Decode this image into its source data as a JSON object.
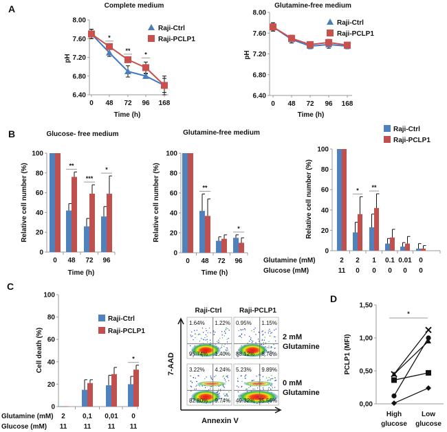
{
  "panels": {
    "a": "A",
    "b": "B",
    "c": "C",
    "d": "D"
  },
  "colors": {
    "ctrl": "#4f81bd",
    "pclp1": "#c0504d",
    "ctrl_line": "#3d78c8",
    "pclp1_line": "#c8504a"
  },
  "chart_data": [
    {
      "type": "line",
      "title": "Complete medium",
      "xlabel": "Time (h)",
      "ylabel": "pH",
      "categories": [
        "0",
        "48",
        "72",
        "96",
        "168"
      ],
      "yticks": [
        "6.40",
        "6.80",
        "7.20",
        "7.60",
        "8.00"
      ],
      "ylim": [
        6.4,
        8.0
      ],
      "legend": "top-right",
      "series": [
        {
          "name": "Raji-Ctrl",
          "marker": "triangle",
          "values": [
            7.7,
            7.3,
            6.9,
            6.8,
            6.6
          ],
          "errors": [
            0.1,
            0.08,
            0.12,
            0.05,
            0.15
          ]
        },
        {
          "name": "Raji-PCLP1",
          "marker": "square",
          "values": [
            7.7,
            7.43,
            7.15,
            6.98,
            6.6
          ],
          "errors": [
            0.1,
            0.03,
            0.03,
            0.12,
            0.2
          ]
        }
      ],
      "significance": [
        {
          "index": 1,
          "label": "*"
        },
        {
          "index": 2,
          "label": "**"
        },
        {
          "index": 3,
          "label": "*"
        }
      ]
    },
    {
      "type": "line",
      "title": "Glutamine-free medium",
      "xlabel": "Time (h)",
      "ylabel": "pH",
      "categories": [
        "0",
        "48",
        "72",
        "96",
        "168"
      ],
      "yticks": [
        "6.40",
        "6.80",
        "7.20",
        "7.60",
        "8.00"
      ],
      "ylim": [
        6.4,
        8.0
      ],
      "legend": "top-right",
      "series": [
        {
          "name": "Raji-Ctrl",
          "marker": "triangle",
          "values": [
            7.72,
            7.48,
            7.35,
            7.38,
            7.35
          ],
          "errors": [
            0.08,
            0.07,
            0.05,
            0.07,
            0.05
          ]
        },
        {
          "name": "Raji-PCLP1",
          "marker": "square",
          "values": [
            7.72,
            7.5,
            7.38,
            7.42,
            7.37
          ],
          "errors": [
            0.08,
            0.06,
            0.04,
            0.06,
            0.05
          ]
        }
      ],
      "significance": []
    },
    {
      "type": "bar",
      "title": "Glucose- free medium",
      "xlabel": "Time (h)",
      "ylabel": "Relative cell number (%)",
      "categories": [
        "0",
        "48",
        "72",
        "96"
      ],
      "yticks": [
        "0",
        "20",
        "40",
        "60",
        "80",
        "100"
      ],
      "ylim": [
        0,
        100
      ],
      "series": [
        {
          "values": [
            100,
            42,
            26,
            36
          ],
          "errors": [
            0,
            7,
            8,
            10
          ]
        },
        {
          "values": [
            100,
            76,
            59,
            59
          ],
          "errors": [
            0,
            5,
            9,
            18
          ]
        }
      ],
      "significance": [
        {
          "index": 1,
          "label": "**"
        },
        {
          "index": 2,
          "label": "***"
        },
        {
          "index": 3,
          "label": "*"
        }
      ]
    },
    {
      "type": "bar",
      "title": "Glutamine-free medium",
      "xlabel": "Time (h)",
      "ylabel": "Relative cell number (%)",
      "categories": [
        "0",
        "48",
        "72",
        "96"
      ],
      "yticks": [
        "0",
        "20",
        "40",
        "60",
        "80",
        "100"
      ],
      "ylim": [
        0,
        100
      ],
      "series": [
        {
          "values": [
            100,
            42,
            12,
            15
          ],
          "errors": [
            0,
            17,
            4,
            3
          ]
        },
        {
          "values": [
            100,
            37,
            14,
            10
          ],
          "errors": [
            0,
            17,
            4,
            5
          ]
        }
      ],
      "significance": [
        {
          "index": 1,
          "label": "**"
        },
        {
          "index": 3,
          "label": "*"
        }
      ]
    },
    {
      "type": "bar",
      "title": "",
      "ylabel": "Relative cell number (%)",
      "row_labels": [
        {
          "label": "Glutamine  (mM)",
          "values": [
            "2",
            "2",
            "1",
            "0.1",
            "0.01",
            "0"
          ]
        },
        {
          "label": "Glucose  (mM)",
          "values": [
            "11",
            "0",
            "0",
            "0",
            "0",
            "0"
          ]
        }
      ],
      "yticks": [
        "0",
        "20",
        "40",
        "60",
        "80",
        "100"
      ],
      "ylim": [
        0,
        100
      ],
      "legend": "top-right",
      "series": [
        {
          "name": "Raji-Ctrl",
          "values": [
            100,
            18,
            23,
            7,
            4,
            2
          ],
          "errors": [
            0,
            10,
            13,
            5,
            4,
            5
          ]
        },
        {
          "name": "Raji-PCLP1",
          "values": [
            100,
            36,
            42,
            13,
            7,
            2
          ],
          "errors": [
            0,
            17,
            14,
            8,
            7,
            3
          ]
        }
      ],
      "significance": [
        {
          "index": 1,
          "label": "*"
        },
        {
          "index": 2,
          "label": "**"
        }
      ]
    },
    {
      "type": "bar",
      "title": "",
      "ylabel": "Cell death (%)",
      "row_labels": [
        {
          "label": "Glutamine  (mM)",
          "values": [
            "2",
            "0,1",
            "0,01",
            "0"
          ]
        },
        {
          "label": "Glucose  (mM)",
          "values": [
            "11",
            "11",
            "11",
            "11"
          ]
        }
      ],
      "yticks": [
        "0",
        "20",
        "40",
        "60",
        "80",
        "100"
      ],
      "ylim": [
        0,
        100
      ],
      "legend": "top-right",
      "series": [
        {
          "name": "Raji-Ctrl",
          "values": [
            0.3,
            15,
            19,
            20
          ],
          "errors": [
            0,
            9,
            9,
            7
          ]
        },
        {
          "name": "Raji-PCLP1",
          "values": [
            0.3,
            21,
            29,
            33
          ],
          "errors": [
            0,
            3,
            6,
            4
          ]
        }
      ],
      "significance": [
        {
          "index": 3,
          "label": "*"
        }
      ]
    },
    {
      "type": "line",
      "title": "",
      "ylabel": "PCLP1 (MFI)",
      "categories": [
        [
          "High",
          "glucose"
        ],
        [
          "Low",
          "glucose"
        ]
      ],
      "yticks": [
        "0,00",
        "0,50",
        "1,00",
        "1,50"
      ],
      "ylim": [
        0,
        1.5
      ],
      "series": [
        {
          "marker": "cross",
          "values": [
            0.45,
            1.12
          ]
        },
        {
          "marker": "triangle",
          "values": [
            0.45,
            0.95
          ]
        },
        {
          "marker": "square",
          "values": [
            0.36,
            0.47
          ]
        },
        {
          "marker": "circle",
          "values": [
            0.12,
            1.0
          ]
        },
        {
          "marker": "diamond",
          "values": [
            0.01,
            0.24
          ]
        }
      ],
      "significance": [
        {
          "label": "*"
        }
      ]
    }
  ],
  "flow": {
    "columns": [
      "Raji-Ctrl",
      "Raji-PCLP1"
    ],
    "rows": [
      [
        "2 mM",
        "Glutamine"
      ],
      [
        "0 mM",
        "Glutamine"
      ]
    ],
    "xlabel": "Annexin V",
    "ylabel": "7-AAD",
    "quadrants": [
      [
        [
          "1.64%",
          "1.22%",
          "95.74%",
          "1.40%"
        ],
        [
          "0.95%",
          "1.15%",
          "88.12%",
          "8.78%"
        ]
      ],
      [
        [
          "3.22%",
          "4.24%",
          "82.80%",
          "9.74%"
        ],
        [
          "5.23%",
          "9.89%",
          "49.32%",
          "35.56%"
        ]
      ]
    ]
  }
}
